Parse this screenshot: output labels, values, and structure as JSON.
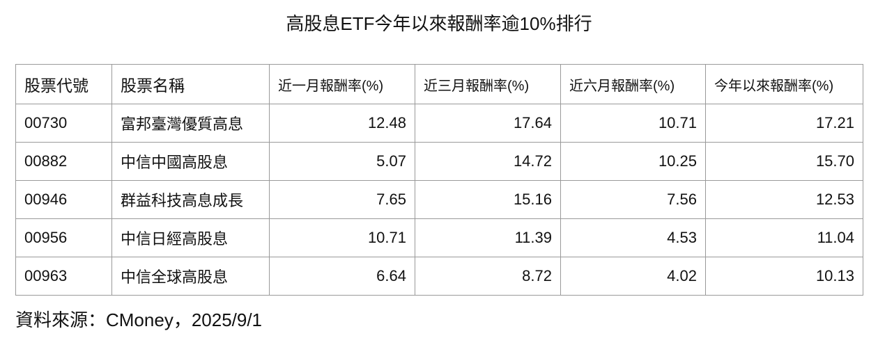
{
  "title": "高股息ETF今年以來報酬率逾10%排行",
  "table": {
    "header": [
      "股票代號",
      "股票名稱",
      "近一月報酬率(%)",
      "近三月報酬率(%)",
      "近六月報酬率(%)",
      "今年以來報酬率(%)"
    ],
    "rows": [
      [
        "00730",
        "富邦臺灣優質高息",
        "12.48",
        "17.64",
        "10.71",
        "17.21"
      ],
      [
        "00882",
        "中信中國高股息",
        "5.07",
        "14.72",
        "10.25",
        "15.70"
      ],
      [
        "00946",
        "群益科技高息成長",
        "7.65",
        "15.16",
        "7.56",
        "12.53"
      ],
      [
        "00956",
        "中信日經高股息",
        "10.71",
        "11.39",
        "4.53",
        "11.04"
      ],
      [
        "00963",
        "中信全球高股息",
        "6.64",
        "8.72",
        "4.02",
        "10.13"
      ]
    ]
  },
  "source": "資料來源：CMoney，2025/9/1"
}
